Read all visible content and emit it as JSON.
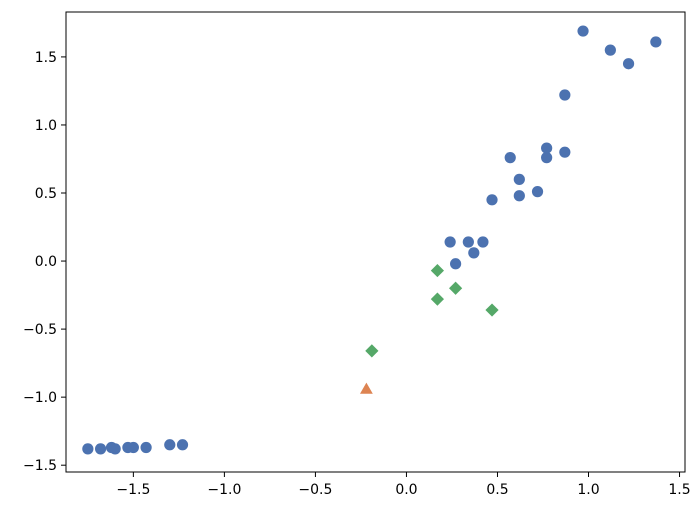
{
  "chart_data": {
    "type": "scatter",
    "title": "",
    "xlabel": "",
    "ylabel": "",
    "xlim": [
      -1.87,
      1.53
    ],
    "ylim": [
      -1.55,
      1.83
    ],
    "grid": false,
    "legend": "none",
    "x_ticks": [
      {
        "value": -1.5,
        "label": "−1.5"
      },
      {
        "value": -1.0,
        "label": "−1.0"
      },
      {
        "value": -0.5,
        "label": "−0.5"
      },
      {
        "value": 0.0,
        "label": "0.0"
      },
      {
        "value": 0.5,
        "label": "0.5"
      },
      {
        "value": 1.0,
        "label": "1.0"
      },
      {
        "value": 1.5,
        "label": "1.5"
      }
    ],
    "y_ticks": [
      {
        "value": -1.5,
        "label": "−1.5"
      },
      {
        "value": -1.0,
        "label": "−1.0"
      },
      {
        "value": -0.5,
        "label": "−0.5"
      },
      {
        "value": 0.0,
        "label": "0.0"
      },
      {
        "value": 0.5,
        "label": "0.5"
      },
      {
        "value": 1.0,
        "label": "1.0"
      },
      {
        "value": 1.5,
        "label": "1.5"
      }
    ],
    "series": [
      {
        "marker": "circle",
        "color": "#4c72b0",
        "points": [
          [
            -1.75,
            -1.38
          ],
          [
            -1.68,
            -1.38
          ],
          [
            -1.62,
            -1.37
          ],
          [
            -1.6,
            -1.38
          ],
          [
            -1.53,
            -1.37
          ],
          [
            -1.5,
            -1.37
          ],
          [
            -1.43,
            -1.37
          ],
          [
            -1.3,
            -1.35
          ],
          [
            -1.23,
            -1.35
          ],
          [
            0.24,
            0.14
          ],
          [
            0.27,
            -0.02
          ],
          [
            0.34,
            0.14
          ],
          [
            0.37,
            0.06
          ],
          [
            0.42,
            0.14
          ],
          [
            0.47,
            0.45
          ],
          [
            0.57,
            0.76
          ],
          [
            0.62,
            0.6
          ],
          [
            0.62,
            0.48
          ],
          [
            0.72,
            0.51
          ],
          [
            0.77,
            0.83
          ],
          [
            0.77,
            0.76
          ],
          [
            0.87,
            1.22
          ],
          [
            0.87,
            0.8
          ],
          [
            0.97,
            1.69
          ],
          [
            1.12,
            1.55
          ],
          [
            1.22,
            1.45
          ],
          [
            1.37,
            1.61
          ]
        ]
      },
      {
        "marker": "diamond",
        "color": "#55a868",
        "points": [
          [
            -0.19,
            -0.66
          ],
          [
            0.17,
            -0.07
          ],
          [
            0.17,
            -0.28
          ],
          [
            0.27,
            -0.2
          ],
          [
            0.47,
            -0.36
          ]
        ]
      },
      {
        "marker": "triangle",
        "color": "#dd8452",
        "points": [
          [
            -0.22,
            -0.94
          ]
        ]
      }
    ]
  }
}
